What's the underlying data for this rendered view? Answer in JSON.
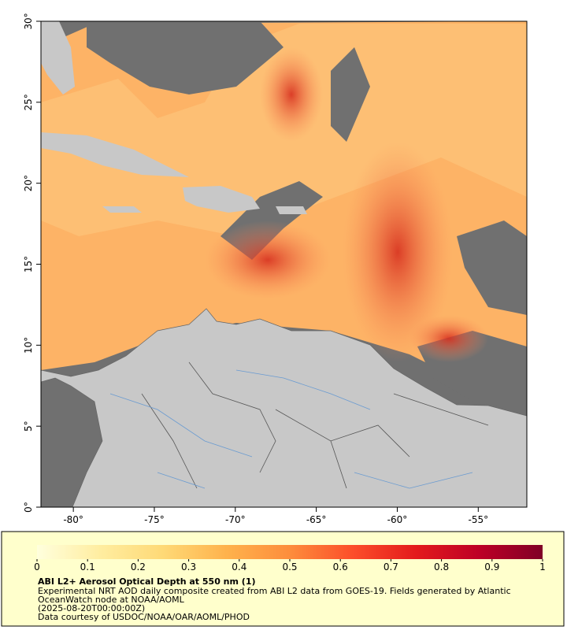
{
  "chart_data": {
    "type": "map",
    "xlim": [
      -82,
      -52
    ],
    "ylim": [
      0,
      30
    ],
    "xticks": [
      {
        "value": -80,
        "label": "-80°"
      },
      {
        "value": -75,
        "label": "-75°"
      },
      {
        "value": -70,
        "label": "-70°"
      },
      {
        "value": -65,
        "label": "-65°"
      },
      {
        "value": -60,
        "label": "-60°"
      },
      {
        "value": -55,
        "label": "-55°"
      }
    ],
    "yticks": [
      {
        "value": 0,
        "label": "0°"
      },
      {
        "value": 5,
        "label": "5°"
      },
      {
        "value": 10,
        "label": "10°"
      },
      {
        "value": 15,
        "label": "15°"
      },
      {
        "value": 20,
        "label": "20°"
      },
      {
        "value": 25,
        "label": "25°"
      },
      {
        "value": 30,
        "label": "30°"
      }
    ],
    "colorbar": {
      "lim": [
        0,
        1
      ],
      "ticks": [
        0,
        0.1,
        0.2,
        0.3,
        0.4,
        0.5,
        0.6,
        0.7,
        0.8,
        0.9,
        1
      ],
      "colormap": [
        "#ffffdd",
        "#ffeda0",
        "#fed976",
        "#feb24c",
        "#fd8d3c",
        "#fc4e2a",
        "#e31a1c",
        "#bd0026",
        "#800026"
      ]
    },
    "title": "ABI L2+ Aerosol Optical Depth at 550 nm (1)",
    "notes": [
      "Experimental NRT AOD daily composite created from ABI L2 data from GOES-19. Fields generated by Atlantic",
      "OceanWatch node at NOAA/AOML",
      "(2025-08-20T00:00:00Z)",
      "Data courtesy of USDOC/NOAA/OAR/AOML/PHOD"
    ]
  }
}
